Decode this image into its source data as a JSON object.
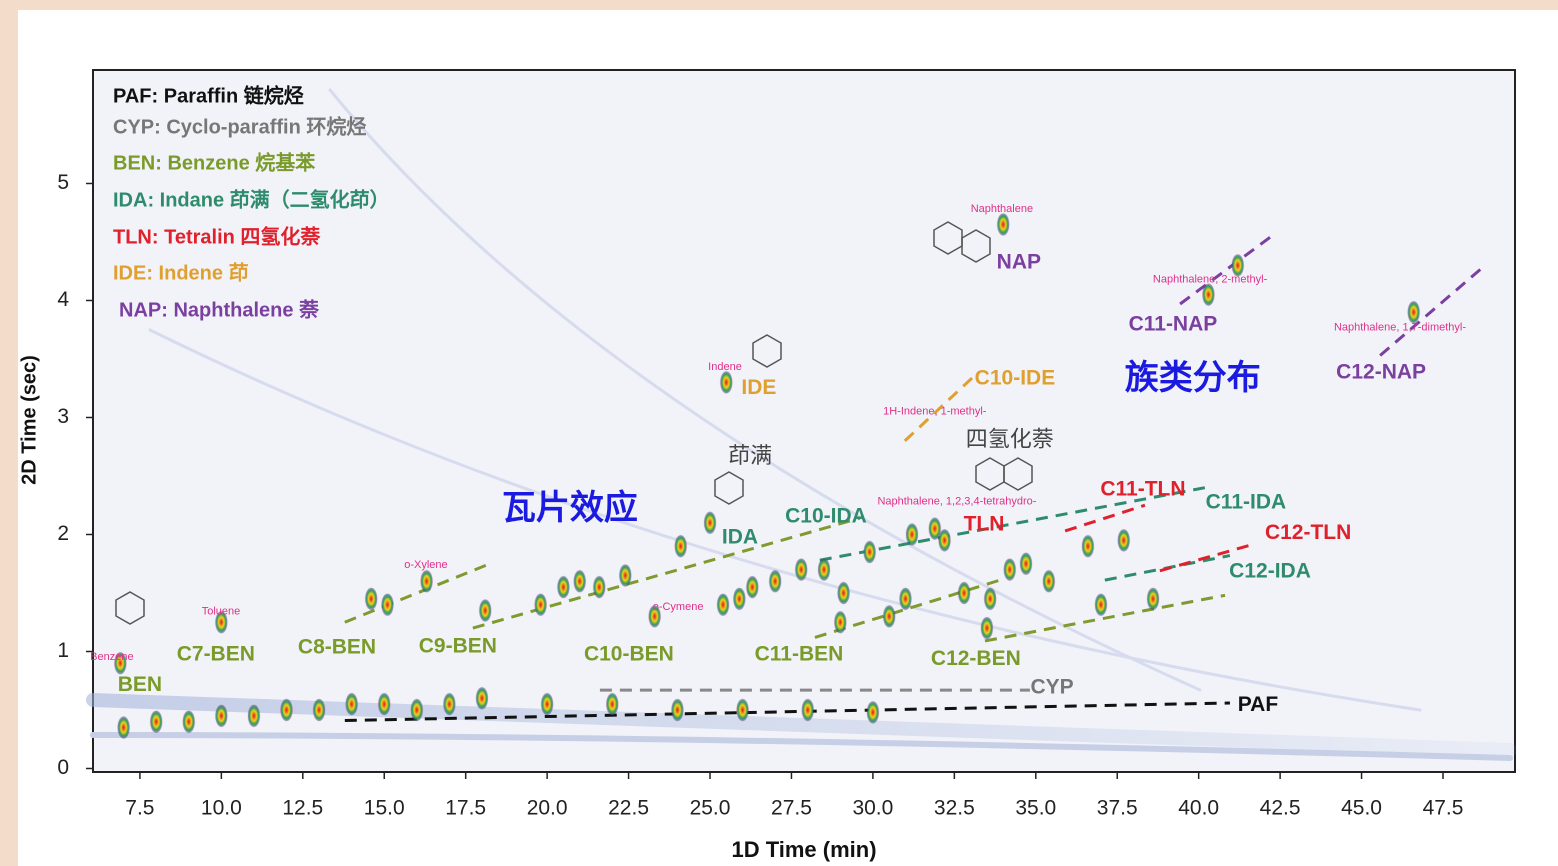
{
  "chart_data": {
    "type": "scatter",
    "xlabel": "1D Time (min)",
    "ylabel": "2D Time (sec)",
    "xlim": [
      6.06,
      49.71
    ],
    "ylim": [
      -0.03,
      5.97
    ],
    "xticks": [
      7.5,
      {
        "value": 10,
        "label": "10.0"
      },
      12.5,
      {
        "value": 15,
        "label": "15.0"
      },
      17.5,
      {
        "value": 20,
        "label": "20.0"
      },
      22.5,
      {
        "value": 25,
        "label": "25.0"
      },
      27.5,
      {
        "value": 30,
        "label": "30.0"
      },
      32.5,
      {
        "value": 35,
        "label": "35.0"
      },
      37.5,
      {
        "value": 40,
        "label": "40.0"
      },
      42.5,
      {
        "value": 45,
        "label": "45.0"
      },
      47.5
    ],
    "yticks": [
      0,
      1,
      2,
      3,
      4,
      5
    ],
    "legend": [
      {
        "text": "PAF: Paraffin 链烷烃",
        "color": "#111111"
      },
      {
        "text": "CYP: Cyclo-paraffin 环烷烃",
        "color": "#777777"
      },
      {
        "text": "BEN: Benzene 烷基苯",
        "color": "#7a9a2a"
      },
      {
        "text": "IDA: Indane 茚满（二氢化茚）",
        "color": "#2e8b6b"
      },
      {
        "text": "TLN: Tetralin 四氢化萘",
        "color": "#e0202a"
      },
      {
        "text": "IDE: Indene 茚",
        "color": "#e0a030"
      },
      {
        "text": "NAP: Naphthalene 萘",
        "color": "#7b3fa0"
      }
    ],
    "peaks": {
      "x": [
        6.9,
        10.0,
        14.6,
        15.1,
        16.3,
        18.1,
        19.8,
        20.5,
        21.0,
        21.6,
        22.4,
        23.3,
        24.1,
        25.0,
        25.4,
        25.9,
        26.3,
        27.0,
        27.8,
        28.5,
        29.1,
        29.9,
        31.2,
        31.9,
        32.2,
        31.0,
        32.8,
        33.6,
        34.2,
        34.7,
        35.4,
        36.6,
        37.7,
        37.0,
        38.6,
        34.0,
        40.3,
        41.2,
        46.6,
        25.5,
        29.0,
        30.5,
        33.5,
        7,
        8,
        9,
        10,
        11,
        12,
        13,
        14,
        15,
        16,
        17,
        18,
        20,
        22,
        24,
        26,
        28,
        30
      ],
      "y": [
        0.9,
        1.25,
        1.45,
        1.4,
        1.6,
        1.35,
        1.4,
        1.55,
        1.6,
        1.55,
        1.65,
        1.3,
        1.9,
        2.1,
        1.4,
        1.45,
        1.55,
        1.6,
        1.7,
        1.7,
        1.5,
        1.85,
        2.0,
        2.05,
        1.95,
        1.45,
        1.5,
        1.45,
        1.7,
        1.75,
        1.6,
        1.9,
        1.95,
        1.4,
        1.45,
        4.65,
        4.05,
        4.3,
        3.9,
        3.3,
        1.25,
        1.3,
        1.2,
        0.35,
        0.4,
        0.4,
        0.45,
        0.45,
        0.5,
        0.5,
        0.55,
        0.55,
        0.5,
        0.55,
        0.6,
        0.55,
        0.55,
        0.5,
        0.5,
        0.5,
        0.48
      ]
    },
    "trend_lines": [
      {
        "color": "#7f9a2e",
        "x": [
          13.79,
          18.15
        ],
        "y": [
          1.25,
          1.74
        ]
      },
      {
        "color": "#7f9a2e",
        "x": [
          17.72,
          29.6
        ],
        "y": [
          1.2,
          2.14
        ]
      },
      {
        "color": "#7f9a2e",
        "x": [
          28.22,
          33.9
        ],
        "y": [
          1.12,
          1.61
        ]
      },
      {
        "color": "#7f9a2e",
        "x": [
          33.44,
          40.81
        ],
        "y": [
          1.09,
          1.48
        ]
      },
      {
        "color": "#2e8b6b",
        "x": [
          28.37,
          40.19
        ],
        "y": [
          1.78,
          2.4
        ]
      },
      {
        "color": "#2e8b6b",
        "x": [
          37.12,
          40.96
        ],
        "y": [
          1.61,
          1.82
        ]
      },
      {
        "color": "#e0202a",
        "x": [
          35.9,
          38.35
        ],
        "y": [
          2.03,
          2.25
        ]
      },
      {
        "color": "#e0202a",
        "x": [
          38.81,
          41.73
        ],
        "y": [
          1.69,
          1.92
        ]
      },
      {
        "color": "#e0a030",
        "x": [
          30.98,
          33.13
        ],
        "y": [
          2.8,
          3.36
        ]
      },
      {
        "color": "#7b3fa0",
        "x": [
          39.43,
          42.19
        ],
        "y": [
          3.97,
          4.54
        ]
      },
      {
        "color": "#7b3fa0",
        "x": [
          45.57,
          48.79
        ],
        "y": [
          3.53,
          4.3
        ]
      },
      {
        "color": "#888888",
        "x": [
          21.62,
          34.82
        ],
        "y": [
          0.67,
          0.67
        ]
      },
      {
        "color": "#111111",
        "x": [
          13.79,
          40.96
        ],
        "y": [
          0.41,
          0.56
        ]
      }
    ],
    "group_labels": [
      {
        "text": "BEN",
        "x": 7.5,
        "y": 0.71,
        "color": "#7a9a2a"
      },
      {
        "text": "C7-BEN",
        "x": 9.83,
        "y": 0.97,
        "color": "#7a9a2a"
      },
      {
        "text": "C8-BEN",
        "x": 13.55,
        "y": 1.03,
        "color": "#7a9a2a"
      },
      {
        "text": "C9-BEN",
        "x": 17.26,
        "y": 1.04,
        "color": "#7a9a2a"
      },
      {
        "text": "C10-BEN",
        "x": 22.51,
        "y": 0.97,
        "color": "#7a9a2a"
      },
      {
        "text": "C11-BEN",
        "x": 27.73,
        "y": 0.97,
        "color": "#7a9a2a"
      },
      {
        "text": "C12-BEN",
        "x": 33.16,
        "y": 0.93,
        "color": "#7a9a2a"
      },
      {
        "text": "CYP",
        "x": 35.5,
        "y": 0.69,
        "color": "#777777"
      },
      {
        "text": "PAF",
        "x": 41.82,
        "y": 0.54,
        "color": "#111111"
      },
      {
        "text": "IDA",
        "x": 25.92,
        "y": 1.97,
        "color": "#2e8b6b"
      },
      {
        "text": "C10-IDA",
        "x": 28.56,
        "y": 2.15,
        "color": "#2e8b6b"
      },
      {
        "text": "C11-IDA",
        "x": 41.45,
        "y": 2.27,
        "color": "#2e8b6b"
      },
      {
        "text": "C12-IDA",
        "x": 42.19,
        "y": 1.68,
        "color": "#2e8b6b"
      },
      {
        "text": "C11-TLN",
        "x": 38.29,
        "y": 2.38,
        "color": "#e0202a"
      },
      {
        "text": "C12-TLN",
        "x": 43.36,
        "y": 2.01,
        "color": "#e0202a"
      },
      {
        "text": "TLN",
        "x": 33.41,
        "y": 2.08,
        "color": "#e0202a"
      },
      {
        "text": "IDE",
        "x": 26.5,
        "y": 3.25,
        "color": "#e0a030"
      },
      {
        "text": "C10-IDE",
        "x": 34.36,
        "y": 3.33,
        "color": "#e0a030"
      },
      {
        "text": "NAP",
        "x": 34.48,
        "y": 4.32,
        "color": "#7b3fa0"
      },
      {
        "text": "C11-NAP",
        "x": 39.21,
        "y": 3.79,
        "color": "#7b3fa0"
      },
      {
        "text": "C12-NAP",
        "x": 45.6,
        "y": 3.38,
        "color": "#7b3fa0"
      }
    ],
    "highlights": [
      {
        "text": "瓦片效应",
        "x": 20.7,
        "y": 2.21,
        "color": "#1a1ae0"
      },
      {
        "text": "族类分布",
        "x": 39.82,
        "y": 3.32,
        "color": "#1a1ae0"
      }
    ],
    "notes": [
      {
        "text": "茚满",
        "x": 26.23,
        "y": 2.66,
        "color": "#444444"
      },
      {
        "text": "四氢化萘",
        "x": 34.2,
        "y": 2.8,
        "color": "#444444"
      }
    ],
    "compound_labels": [
      {
        "text": "Benzene",
        "x": 6.64,
        "y": 0.95
      },
      {
        "text": "Toluene",
        "x": 9.99,
        "y": 1.34
      },
      {
        "text": "o-Xylene",
        "x": 16.28,
        "y": 1.74
      },
      {
        "text": "o-Cymene",
        "x": 24.02,
        "y": 1.38
      },
      {
        "text": "Indene",
        "x": 25.46,
        "y": 3.43
      },
      {
        "text": "Naphthalene",
        "x": 33.96,
        "y": 4.78
      },
      {
        "text": "1H-Indene, 1-methyl-",
        "x": 31.9,
        "y": 3.05
      },
      {
        "text": "Naphthalene, 1,2,3,4-tetrahydro-",
        "x": 32.58,
        "y": 2.28
      },
      {
        "text": "Naphthalene, 2-methyl-",
        "x": 40.35,
        "y": 4.18
      },
      {
        "text": "Naphthalene, 1,7-dimethyl-",
        "x": 46.18,
        "y": 3.77
      }
    ],
    "compound_color": "#e0308a",
    "peak_color": "#e02020"
  }
}
